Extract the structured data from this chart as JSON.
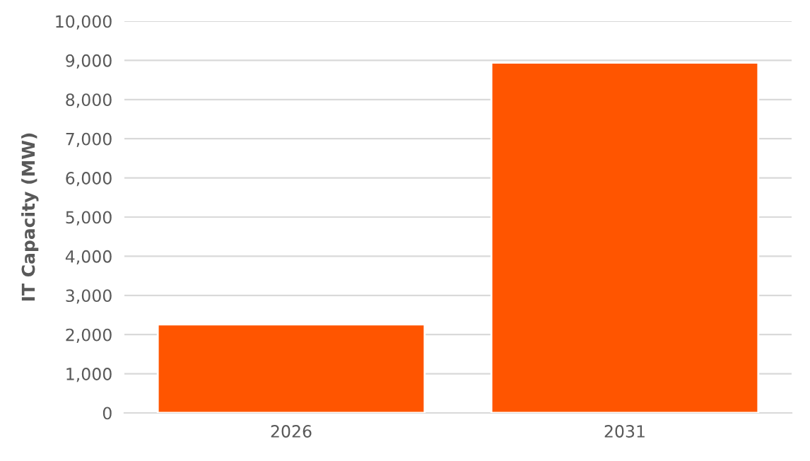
{
  "chart_data": {
    "type": "bar",
    "ylabel": "IT Capacity (MW)",
    "categories": [
      "2026",
      "2031"
    ],
    "values": [
      2260,
      8940
    ],
    "color": "#ff5500",
    "ylim": [
      0,
      10000
    ],
    "yticks": [
      {
        "value": 0,
        "label": "0"
      },
      {
        "value": 1000,
        "label": "1,000"
      },
      {
        "value": 2000,
        "label": "2,000"
      },
      {
        "value": 3000,
        "label": "3,000"
      },
      {
        "value": 4000,
        "label": "4,000"
      },
      {
        "value": 5000,
        "label": "5,000"
      },
      {
        "value": 6000,
        "label": "6,000"
      },
      {
        "value": 7000,
        "label": "7,000"
      },
      {
        "value": 8000,
        "label": "8,000"
      },
      {
        "value": 9000,
        "label": "9,000"
      },
      {
        "value": 10000,
        "label": "10,000"
      }
    ],
    "grid": "y"
  }
}
